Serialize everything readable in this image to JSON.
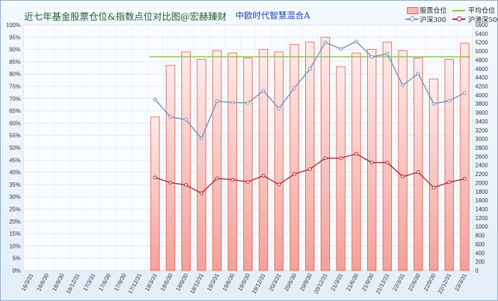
{
  "title": "近七年基金股票仓位&指数点位对比图@宏赫臻财",
  "subtitle": "中欧时代智慧混合A",
  "legend": {
    "bars": "股票仓位",
    "avg": "平均仓位",
    "hs300": "沪深300",
    "hs500": "沪港深500"
  },
  "colors": {
    "bar_fill_top": "#fdecea",
    "bar_fill_bottom": "#f4a19a",
    "bar_stroke": "#e0645a",
    "avg_line": "#92c050",
    "hs300_line": "#6f8fc0",
    "hs500_line": "#b0242a"
  },
  "chart_data": {
    "type": "bar",
    "categories": [
      "16/3/31",
      "16/6/30",
      "16/9/30",
      "16/12/31",
      "17/3/31",
      "17/6/30",
      "17/9/30",
      "17/12/31",
      "18/3/31",
      "18/6/30",
      "18/9/30",
      "18/12/31",
      "19/3/31",
      "19/6/30",
      "19/9/30",
      "19/12/31",
      "20/3/31",
      "20/6/30",
      "20/9/30",
      "20/12/31",
      "21/3/31",
      "21/6/30",
      "21/9/30",
      "21/12/31",
      "22/3/31",
      "22/6/30",
      "22/9/30",
      "22/12/31",
      "23/3/31"
    ],
    "series": [
      {
        "name": "股票仓位",
        "axis": "left",
        "type": "bar",
        "unit": "%",
        "values": [
          null,
          null,
          null,
          null,
          null,
          null,
          null,
          null,
          62.5,
          83.5,
          89,
          86,
          89.5,
          88.5,
          86.5,
          90,
          89,
          92,
          93,
          95,
          83,
          88.5,
          90,
          93,
          89.5,
          86.5,
          78,
          86,
          92.5
        ]
      },
      {
        "name": "平均仓位",
        "axis": "left",
        "type": "line",
        "unit": "%",
        "values": [
          null,
          null,
          null,
          null,
          null,
          null,
          null,
          null,
          87,
          87,
          87,
          87,
          87,
          87,
          87,
          87,
          87,
          87,
          87,
          87,
          87,
          87,
          87,
          87,
          87,
          87,
          87,
          87,
          87
        ]
      },
      {
        "name": "沪深300",
        "axis": "right",
        "type": "line",
        "values": [
          null,
          null,
          null,
          null,
          null,
          null,
          null,
          null,
          3900,
          3500,
          3440,
          3010,
          3860,
          3830,
          3820,
          4100,
          3690,
          4160,
          4590,
          5200,
          5050,
          5220,
          4870,
          4940,
          4220,
          4490,
          3800,
          3870,
          4050
        ]
      },
      {
        "name": "沪港深500",
        "axis": "right",
        "type": "line",
        "values": [
          null,
          null,
          null,
          null,
          null,
          null,
          null,
          null,
          2120,
          2000,
          1950,
          1760,
          2100,
          2070,
          2020,
          2160,
          1960,
          2200,
          2310,
          2560,
          2560,
          2660,
          2460,
          2460,
          2140,
          2240,
          1890,
          2010,
          2090
        ]
      }
    ],
    "y_left": {
      "min": 0,
      "max": 100,
      "step": 5,
      "suffix": "%"
    },
    "y_right": {
      "min": 0,
      "max": 5600,
      "step": 200
    },
    "grid": true,
    "legend_position": "top-right"
  }
}
